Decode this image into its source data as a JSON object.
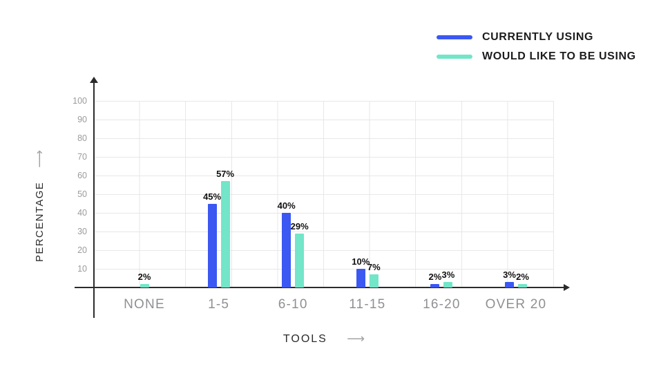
{
  "chart_data": {
    "type": "bar",
    "title": "",
    "categories": [
      "NONE",
      "1-5",
      "6-10",
      "11-15",
      "16-20",
      "OVER 20"
    ],
    "series": [
      {
        "name": "CURRENTLY USING",
        "color": "#3b58f2",
        "values": [
          null,
          45,
          40,
          10,
          2,
          3
        ],
        "labels": [
          "",
          "45%",
          "40%",
          "10%",
          "2%",
          "3%"
        ]
      },
      {
        "name": "WOULD LIKE TO BE USING",
        "color": "#73e5c8",
        "values": [
          2,
          57,
          29,
          7,
          3,
          2
        ],
        "labels": [
          "2%",
          "57%",
          "29%",
          "7%",
          "3%",
          "2%"
        ]
      }
    ],
    "xlabel": "TOOLS",
    "ylabel": "PERCENTAGE",
    "ylim": [
      0,
      100
    ],
    "yticks": [
      10,
      20,
      30,
      40,
      50,
      60,
      70,
      80,
      90,
      100
    ],
    "grid": true,
    "legend_position": "top-right",
    "arrow_glyph": "⟶",
    "colors": {
      "background": "#ffffff",
      "grid": "#e7e7e7",
      "axis": "#2b2b2b",
      "tick_text": "#9b9b9b",
      "category_text": "#8f9094",
      "value_label_text": "#111111",
      "legend_text": "#1c1c1e",
      "arrow": "#a3a3a3"
    }
  }
}
